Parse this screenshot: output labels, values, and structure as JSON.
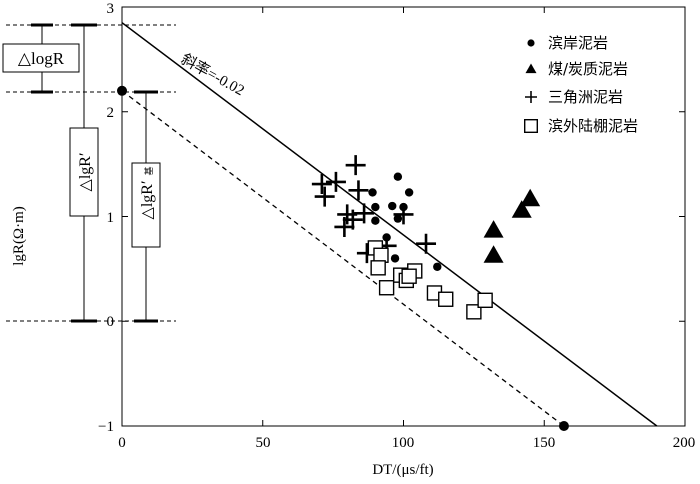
{
  "chart_data": {
    "type": "scatter",
    "xlabel": "DT/(μs/ft)",
    "ylabel": "lgR(Ω·m)",
    "xlim": [
      0,
      200
    ],
    "ylim": [
      -1,
      3
    ],
    "x_ticks": [
      "0",
      "50",
      "100",
      "150",
      "200"
    ],
    "y_ticks": [
      "−1",
      "0",
      "1",
      "2",
      "3"
    ],
    "series": [
      {
        "name": "滨岸泥岩",
        "marker": "circle",
        "points": [
          [
            89,
            1.23
          ],
          [
            90,
            1.09
          ],
          [
            90,
            0.96
          ],
          [
            96,
            1.1
          ],
          [
            98,
            1.38
          ],
          [
            98,
            0.98
          ],
          [
            100,
            1.09
          ],
          [
            102,
            1.23
          ],
          [
            94,
            0.8
          ],
          [
            97,
            0.6
          ],
          [
            112,
            0.52
          ]
        ]
      },
      {
        "name": "煤/炭质泥岩",
        "marker": "triangle",
        "points": [
          [
            132,
            0.87
          ],
          [
            132,
            0.63
          ],
          [
            142,
            1.06
          ],
          [
            145,
            1.17
          ]
        ]
      },
      {
        "name": "三角洲泥岩",
        "marker": "plus",
        "points": [
          [
            71,
            1.31
          ],
          [
            72,
            1.19
          ],
          [
            76,
            1.33
          ],
          [
            83,
            1.49
          ],
          [
            84,
            1.25
          ],
          [
            80,
            1.02
          ],
          [
            82,
            0.97
          ],
          [
            79,
            0.9
          ],
          [
            86,
            1.03
          ],
          [
            100,
            1.02
          ],
          [
            91,
            0.64
          ],
          [
            87,
            0.65
          ],
          [
            94,
            0.72
          ],
          [
            108,
            0.74
          ]
        ]
      },
      {
        "name": "滨外陆棚泥岩",
        "marker": "square",
        "points": [
          [
            90,
            0.7
          ],
          [
            92,
            0.63
          ],
          [
            91,
            0.51
          ],
          [
            94,
            0.32
          ],
          [
            99,
            0.44
          ],
          [
            101,
            0.39
          ],
          [
            104,
            0.48
          ],
          [
            102,
            0.43
          ],
          [
            111,
            0.27
          ],
          [
            115,
            0.21
          ],
          [
            125,
            0.09
          ],
          [
            129,
            0.2
          ]
        ]
      }
    ],
    "lines": [
      {
        "label": "斜率=-0.02",
        "style": "solid",
        "from": [
          0,
          2.85
        ],
        "to": [
          190,
          -1
        ]
      },
      {
        "style": "dashed",
        "from": [
          0,
          2.2
        ],
        "to": [
          157,
          -1
        ]
      }
    ],
    "anchor_points": [
      [
        0,
        2.2
      ],
      [
        157,
        -1
      ]
    ],
    "annotations": {
      "slope_label": "斜率=-0.02",
      "delta_logR": "△logR",
      "delta_lgR_prime": "△lgR′",
      "delta_lgR_prime_base": "△lgR′",
      "base_subscript": "基"
    },
    "legend_position": "top-right"
  }
}
